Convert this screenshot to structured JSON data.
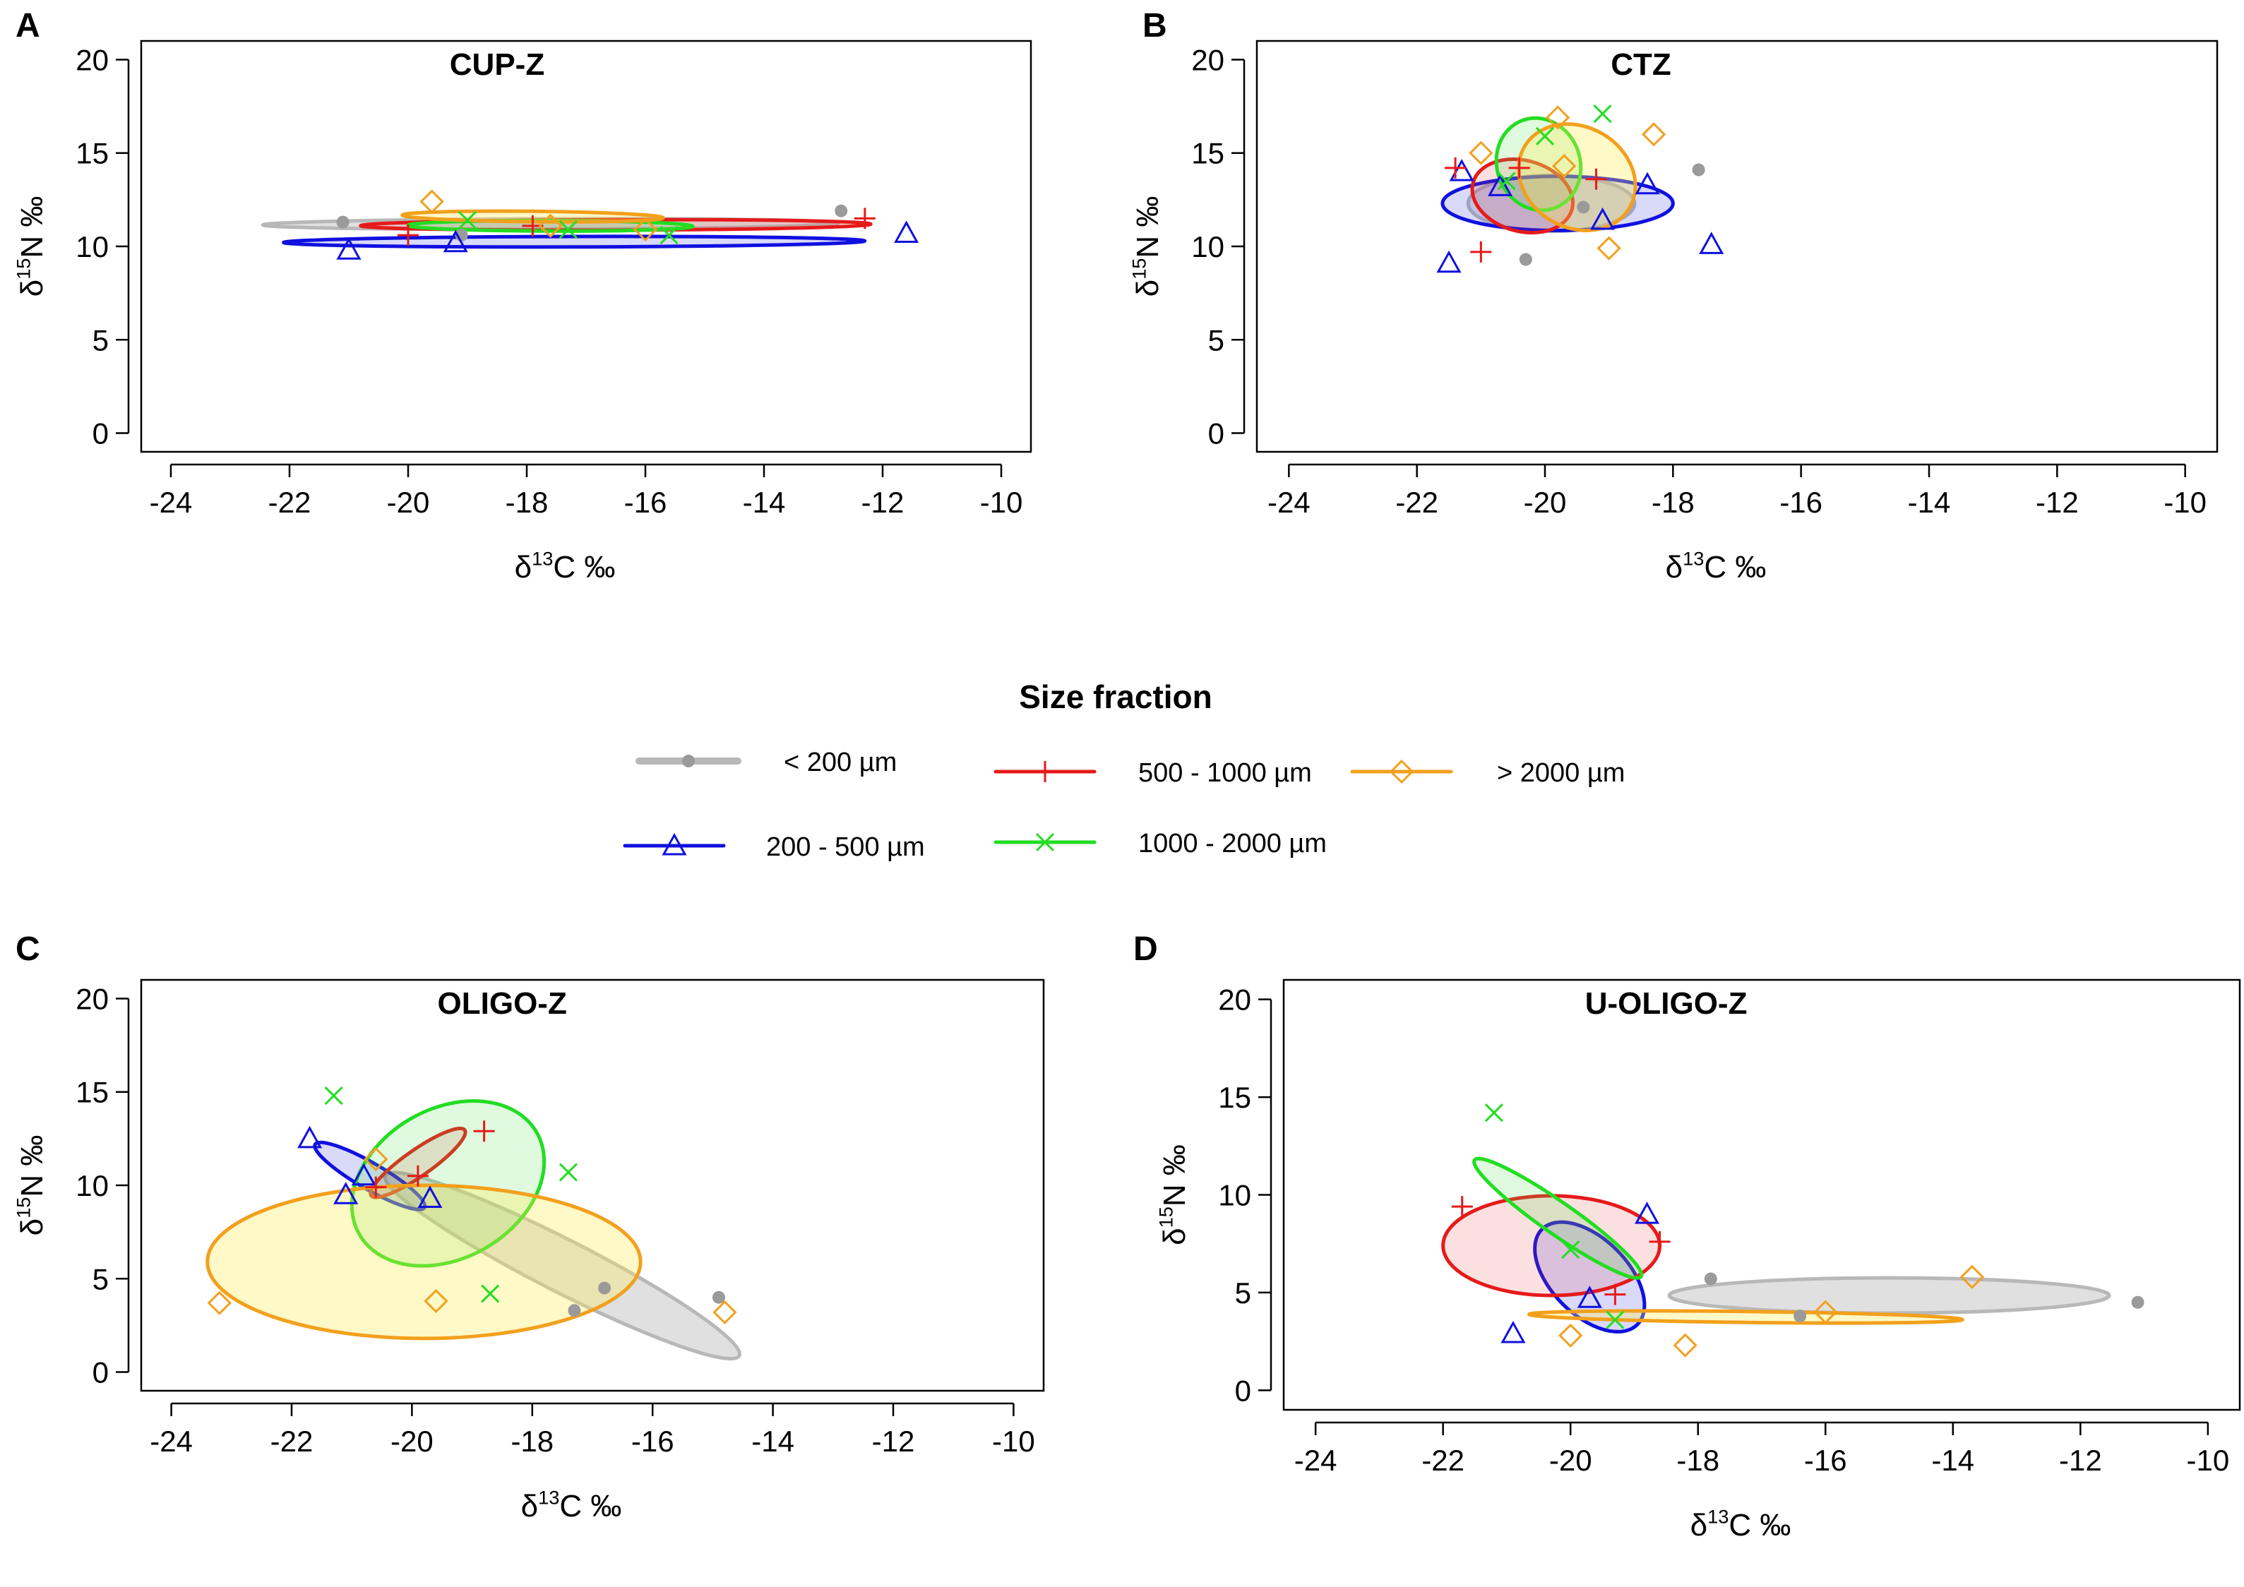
{
  "figure": {
    "legend": {
      "title": "Size fraction",
      "entries": [
        {
          "key": "lt200",
          "label": "< 200 µm",
          "color": "#b8b8b8",
          "marker": "circle"
        },
        {
          "key": "s200_500",
          "label": "200 - 500 µm",
          "color": "#1010e0",
          "marker": "triangle"
        },
        {
          "key": "s500_1000",
          "label": "500 - 1000 µm",
          "color": "#e61a1a",
          "marker": "plus"
        },
        {
          "key": "s1000_2000",
          "label": "1000 - 2000 µm",
          "color": "#22dd22",
          "marker": "cross"
        },
        {
          "key": "gt2000",
          "label": "> 2000 µm",
          "color": "#f2a01c",
          "marker": "diamond"
        }
      ]
    },
    "axis_text": {
      "ylabel_delta": "δ",
      "ylabel_sup": "15",
      "ylabel_rest": "N ‰",
      "xlabel_delta": "δ",
      "xlabel_sup": "13",
      "xlabel_rest": "C ‰"
    }
  },
  "chart_data": [
    {
      "panel": "A",
      "title": "CUP-Z",
      "type": "scatter",
      "xlabel": "δ13C ‰",
      "ylabel": "δ15N ‰",
      "xlim": [
        -24.5,
        -9.5
      ],
      "ylim": [
        -1,
        21
      ],
      "xticks": [
        -24,
        -22,
        -20,
        -18,
        -16,
        -14,
        -12,
        -10
      ],
      "yticks": [
        0,
        5,
        10,
        15,
        20
      ],
      "series": [
        {
          "name": "< 200 µm",
          "key": "lt200",
          "points": [
            [
              -21.1,
              11.3
            ],
            [
              -12.7,
              11.9
            ],
            [
              -19.1,
              10.6
            ]
          ],
          "ellipse": {
            "cx": -17.6,
            "cy": 11.2,
            "rx": 4.85,
            "ry": 0.28,
            "angle_deg": 0.2
          }
        },
        {
          "name": "200 - 500 µm",
          "key": "s200_500",
          "points": [
            [
              -21.0,
              9.8
            ],
            [
              -11.6,
              10.7
            ],
            [
              -19.2,
              10.2
            ]
          ],
          "ellipse": {
            "cx": -17.2,
            "cy": 10.25,
            "rx": 4.9,
            "ry": 0.28,
            "angle_deg": 0.15
          }
        },
        {
          "name": "500 - 1000 µm",
          "key": "s500_1000",
          "points": [
            [
              -20.0,
              10.6
            ],
            [
              -12.3,
              11.5
            ],
            [
              -17.9,
              11.1
            ]
          ],
          "ellipse": {
            "cx": -16.5,
            "cy": 11.15,
            "rx": 4.3,
            "ry": 0.28,
            "angle_deg": 0.18
          }
        },
        {
          "name": "1000 - 2000 µm",
          "key": "s1000_2000",
          "points": [
            [
              -19.0,
              11.4
            ],
            [
              -15.6,
              10.6
            ],
            [
              -17.3,
              10.9
            ]
          ],
          "ellipse": {
            "cx": -17.6,
            "cy": 11.1,
            "rx": 2.4,
            "ry": 0.28,
            "angle_deg": -0.2
          }
        },
        {
          "name": "> 2000 µm",
          "key": "gt2000",
          "points": [
            [
              -19.6,
              12.4
            ],
            [
              -17.6,
              11.1
            ],
            [
              -16.0,
              10.9
            ]
          ],
          "ellipse": {
            "cx": -17.9,
            "cy": 11.6,
            "rx": 2.2,
            "ry": 0.28,
            "angle_deg": -0.6
          }
        }
      ]
    },
    {
      "panel": "B",
      "title": "CTZ",
      "type": "scatter",
      "xlabel": "δ13C ‰",
      "ylabel": "δ15N ‰",
      "xlim": [
        -24.5,
        -9.5
      ],
      "ylim": [
        -1,
        21
      ],
      "xticks": [
        -24,
        -22,
        -20,
        -18,
        -16,
        -14,
        -12,
        -10
      ],
      "yticks": [
        0,
        5,
        10,
        15,
        20
      ],
      "series": [
        {
          "name": "< 200 µm",
          "key": "lt200",
          "points": [
            [
              -17.6,
              14.1
            ],
            [
              -20.3,
              9.3
            ],
            [
              -19.4,
              12.1
            ]
          ],
          "ellipse": {
            "cx": -19.9,
            "cy": 12.3,
            "rx": 1.3,
            "ry": 1.5,
            "angle_deg": 0
          }
        },
        {
          "name": "200 - 500 µm",
          "key": "s200_500",
          "points": [
            [
              -21.5,
              9.1
            ],
            [
              -17.4,
              10.1
            ],
            [
              -21.3,
              14.0
            ],
            [
              -18.4,
              13.3
            ],
            [
              -20.7,
              13.2
            ],
            [
              -19.1,
              11.4
            ]
          ],
          "ellipse": {
            "cx": -19.8,
            "cy": 12.3,
            "rx": 1.8,
            "ry": 1.45,
            "angle_deg": 0
          }
        },
        {
          "name": "500 - 1000 µm",
          "key": "s500_1000",
          "points": [
            [
              -21.0,
              9.7
            ],
            [
              -21.4,
              14.2
            ],
            [
              -19.2,
              13.6
            ],
            [
              -20.4,
              14.2
            ]
          ],
          "ellipse": {
            "cx": -20.35,
            "cy": 12.7,
            "rx": 0.8,
            "ry": 1.9,
            "angle_deg": -15
          }
        },
        {
          "name": "1000 - 2000 µm",
          "key": "s1000_2000",
          "points": [
            [
              -19.1,
              17.1
            ],
            [
              -20.0,
              15.9
            ],
            [
              -20.6,
              13.5
            ]
          ],
          "ellipse": {
            "cx": -20.1,
            "cy": 14.4,
            "rx": 0.65,
            "ry": 2.5,
            "angle_deg": 20
          }
        },
        {
          "name": "> 2000 µm",
          "key": "gt2000",
          "points": [
            [
              -19.8,
              16.9
            ],
            [
              -21.0,
              15.0
            ],
            [
              -18.3,
              16.0
            ],
            [
              -19.0,
              9.9
            ],
            [
              -19.7,
              14.3
            ]
          ],
          "ellipse": {
            "cx": -19.5,
            "cy": 13.7,
            "rx": 0.95,
            "ry": 2.7,
            "angle_deg": -30
          }
        }
      ]
    },
    {
      "panel": "C",
      "title": "OLIGO-Z",
      "type": "scatter",
      "xlabel": "δ13C ‰",
      "ylabel": "δ15N ‰",
      "xlim": [
        -24.5,
        -9.5
      ],
      "ylim": [
        -1,
        21
      ],
      "xticks": [
        -24,
        -22,
        -20,
        -18,
        -16,
        -14,
        -12,
        -10
      ],
      "yticks": [
        0,
        5,
        10,
        15,
        20
      ],
      "series": [
        {
          "name": "< 200 µm",
          "key": "lt200",
          "points": [
            [
              -14.9,
              4.0
            ],
            [
              -17.3,
              3.3
            ],
            [
              -16.8,
              4.5
            ]
          ],
          "ellipse": {
            "cx": -17.5,
            "cy": 5.7,
            "rx": 3.3,
            "ry": 1.4,
            "angle_deg": -27
          }
        },
        {
          "name": "200 - 500 µm",
          "key": "s200_500",
          "points": [
            [
              -21.7,
              12.5
            ],
            [
              -21.1,
              9.5
            ],
            [
              -19.7,
              9.3
            ],
            [
              -20.8,
              10.5
            ]
          ],
          "ellipse": {
            "cx": -20.7,
            "cy": 10.5,
            "rx": 1.05,
            "ry": 0.7,
            "angle_deg": -30
          }
        },
        {
          "name": "500 - 1000 µm",
          "key": "s500_1000",
          "points": [
            [
              -18.8,
              12.9
            ],
            [
              -20.6,
              9.9
            ],
            [
              -19.9,
              10.5
            ]
          ],
          "ellipse": {
            "cx": -19.9,
            "cy": 11.2,
            "rx": 0.95,
            "ry": 0.7,
            "angle_deg": 35
          }
        },
        {
          "name": "1000 - 2000 µm",
          "key": "s1000_2000",
          "points": [
            [
              -21.3,
              14.8
            ],
            [
              -17.4,
              10.7
            ],
            [
              -18.7,
              4.2
            ]
          ],
          "ellipse": {
            "cx": -19.4,
            "cy": 10.1,
            "rx": 1.7,
            "ry": 4.0,
            "angle_deg": 30
          }
        },
        {
          "name": "> 2000 µm",
          "key": "gt2000",
          "points": [
            [
              -23.2,
              3.7
            ],
            [
              -19.6,
              3.8
            ],
            [
              -14.8,
              3.2
            ],
            [
              -20.6,
              11.4
            ]
          ],
          "ellipse": {
            "cx": -19.8,
            "cy": 5.9,
            "rx": 3.6,
            "ry": 4.1,
            "angle_deg": 0
          }
        }
      ]
    },
    {
      "panel": "D",
      "title": "U-OLIGO-Z",
      "type": "scatter",
      "xlabel": "δ13C ‰",
      "ylabel": "δ15N ‰",
      "xlim": [
        -24.5,
        -9.5
      ],
      "ylim": [
        -1,
        21
      ],
      "xticks": [
        -24,
        -22,
        -20,
        -18,
        -16,
        -14,
        -12,
        -10
      ],
      "yticks": [
        0,
        5,
        10,
        15,
        20
      ],
      "series": [
        {
          "name": "< 200 µm",
          "key": "lt200",
          "points": [
            [
              -11.1,
              4.5
            ],
            [
              -17.8,
              5.7
            ],
            [
              -16.4,
              3.8
            ]
          ],
          "ellipse": {
            "cx": -15.0,
            "cy": 4.85,
            "rx": 3.45,
            "ry": 0.9,
            "angle_deg": 0
          }
        },
        {
          "name": "200 - 500 µm",
          "key": "s200_500",
          "points": [
            [
              -20.9,
              2.9
            ],
            [
              -18.8,
              9.0
            ],
            [
              -19.7,
              4.7
            ]
          ],
          "ellipse": {
            "cx": -19.7,
            "cy": 5.8,
            "rx": 0.6,
            "ry": 3.45,
            "angle_deg": 45
          }
        },
        {
          "name": "500 - 1000 µm",
          "key": "s500_1000",
          "points": [
            [
              -21.7,
              9.4
            ],
            [
              -18.6,
              7.6
            ],
            [
              -19.3,
              4.9
            ]
          ],
          "ellipse": {
            "cx": -20.3,
            "cy": 7.4,
            "rx": 1.7,
            "ry": 2.55,
            "angle_deg": 0
          }
        },
        {
          "name": "1000 - 2000 µm",
          "key": "s1000_2000",
          "points": [
            [
              -21.2,
              14.2
            ],
            [
              -20.0,
              7.2
            ],
            [
              -19.3,
              3.6
            ]
          ],
          "ellipse": {
            "cx": -20.2,
            "cy": 8.8,
            "rx": 0.25,
            "ry": 5.2,
            "angle_deg": 55
          }
        },
        {
          "name": "> 2000 µm",
          "key": "gt2000",
          "points": [
            [
              -13.7,
              5.8
            ],
            [
              -18.2,
              2.3
            ],
            [
              -20.0,
              2.8
            ],
            [
              -16.0,
              4.0
            ]
          ],
          "ellipse": {
            "cx": -17.25,
            "cy": 3.75,
            "rx": 3.4,
            "ry": 0.28,
            "angle_deg": -0.7
          }
        }
      ]
    }
  ]
}
